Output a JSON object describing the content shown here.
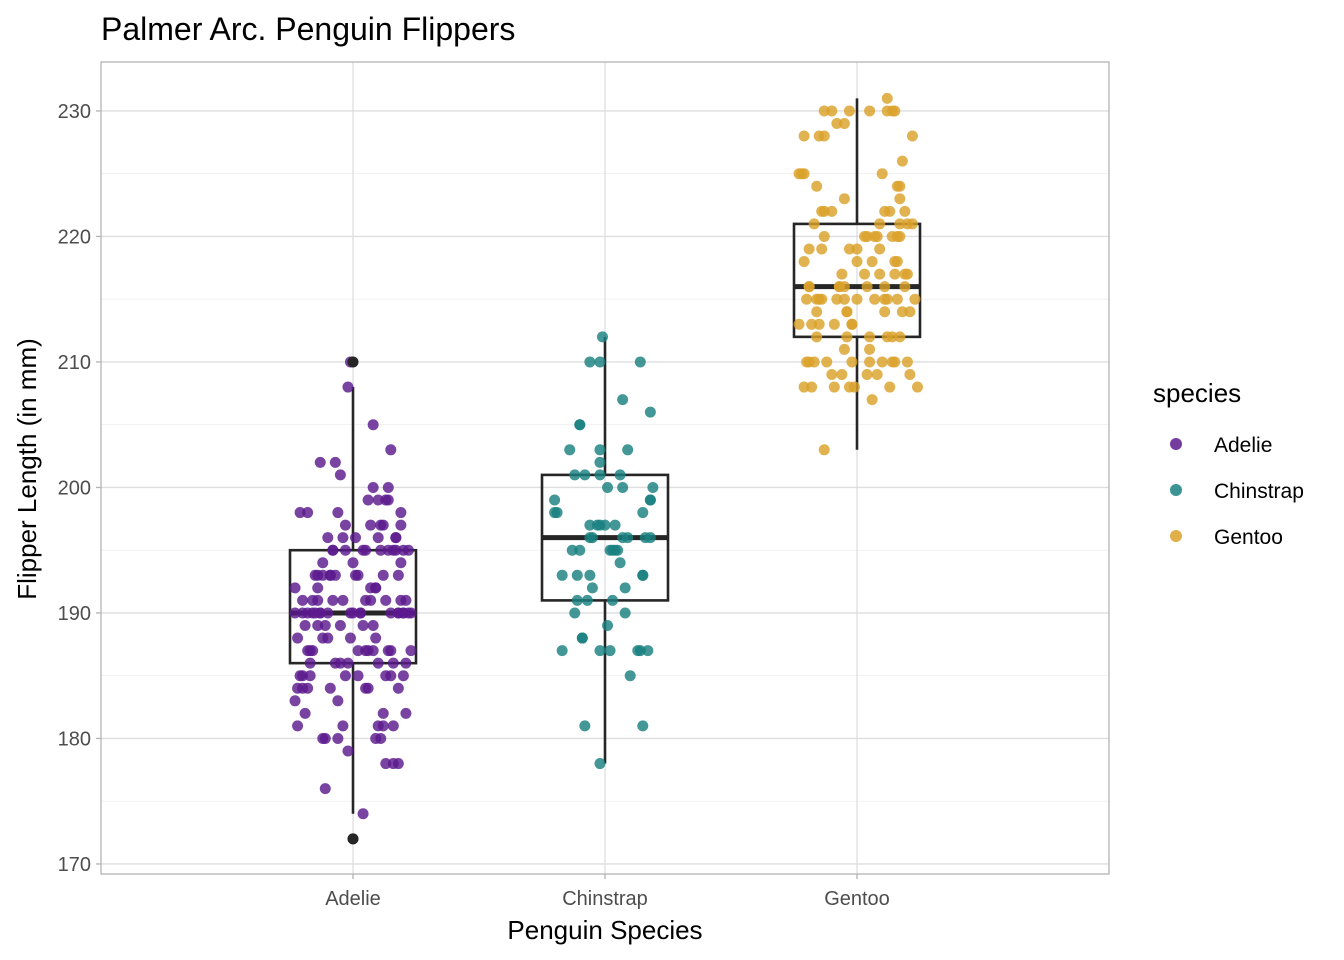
{
  "chart_data": {
    "type": "scatter",
    "overlay": "boxplot",
    "title": "Palmer Arc. Penguin Flippers",
    "xlabel": "Penguin Species",
    "ylabel": "Flipper Length (in mm)",
    "categories": [
      "Adelie",
      "Chinstrap",
      "Gentoo"
    ],
    "ylim": [
      169.2,
      233.9
    ],
    "yticks": [
      170,
      180,
      190,
      200,
      210,
      220,
      230
    ],
    "grid": true,
    "legend": {
      "title": "species",
      "position": "right"
    },
    "colors": {
      "Adelie": "#5c1a8e",
      "Chinstrap": "#1a8080",
      "Gentoo": "#dba12a"
    },
    "box_color": "#262626",
    "jitter_width": 0.5,
    "boxplots": [
      {
        "category": "Adelie",
        "min": 174,
        "q1": 186,
        "median": 190,
        "q3": 195,
        "max": 208,
        "outliers": [
          210,
          172
        ]
      },
      {
        "category": "Chinstrap",
        "min": 178,
        "q1": 191,
        "median": 196,
        "q3": 201,
        "max": 212,
        "outliers": []
      },
      {
        "category": "Gentoo",
        "min": 203,
        "q1": 212,
        "median": 216,
        "q3": 221,
        "max": 231,
        "outliers": []
      }
    ],
    "series": [
      {
        "name": "Adelie",
        "y": [
          181,
          186,
          195,
          193,
          190,
          181,
          195,
          193,
          190,
          186,
          180,
          182,
          191,
          198,
          185,
          195,
          197,
          184,
          194,
          174,
          180,
          189,
          185,
          180,
          187,
          183,
          187,
          172,
          180,
          178,
          178,
          188,
          184,
          195,
          196,
          190,
          180,
          181,
          184,
          182,
          195,
          186,
          196,
          185,
          190,
          182,
          179,
          190,
          191,
          186,
          188,
          190,
          200,
          187,
          191,
          186,
          193,
          181,
          194,
          185,
          195,
          185,
          192,
          184,
          192,
          195,
          188,
          190,
          198,
          190,
          190,
          196,
          197,
          190,
          195,
          191,
          184,
          187,
          195,
          189,
          196,
          187,
          193,
          191,
          194,
          190,
          189,
          189,
          190,
          202,
          205,
          185,
          186,
          187,
          208,
          190,
          196,
          178,
          192,
          192,
          203,
          183,
          190,
          193,
          184,
          199,
          190,
          181,
          197,
          198,
          191,
          193,
          197,
          191,
          196,
          188,
          199,
          189,
          189,
          187,
          198,
          176,
          202,
          186,
          199,
          191,
          195,
          191,
          210,
          190,
          197,
          193,
          199,
          187,
          190,
          191,
          200,
          185,
          193,
          193,
          187,
          188,
          190,
          192,
          185,
          190,
          184,
          195,
          193,
          187,
          201
        ],
        "x_jitter": [
          -0.22,
          0.1,
          0.05,
          -0.15,
          0.18,
          0.12,
          -0.08,
          0.02,
          -0.2,
          0.16,
          -0.11,
          0.21,
          0.07,
          -0.18,
          0.13,
          -0.03,
          0.19,
          -0.09,
          0.0,
          0.04,
          0.11,
          -0.14,
          0.2,
          -0.06,
          0.15,
          -0.23,
          0.08,
          0.0,
          0.09,
          0.13,
          0.18,
          -0.1,
          -0.2,
          0.22,
          -0.04,
          -0.16,
          -0.12,
          0.1,
          0.06,
          -0.19,
          0.14,
          -0.07,
          0.17,
          -0.21,
          0.03,
          0.12,
          -0.02,
          -0.13,
          0.19,
          -0.05,
          0.09,
          -0.23,
          0.14,
          -0.17,
          0.05,
          0.21,
          -0.09,
          0.16,
          -0.12,
          0.02,
          0.11,
          -0.2,
          0.07,
          0.18,
          -0.14,
          0.04,
          -0.01,
          0.15,
          -0.06,
          0.23,
          -0.18,
          0.1,
          -0.03,
          0.2,
          -0.08,
          0.13,
          -0.22,
          0.06,
          0.17,
          -0.11,
          0.01,
          -0.16,
          0.12,
          -0.04,
          0.19,
          -0.13,
          0.08,
          -0.19,
          0.22,
          -0.07,
          0.08,
          0.15,
          -0.17,
          0.05,
          -0.02,
          0.03,
          -0.1,
          0.16,
          -0.23,
          0.09,
          0.15,
          -0.06,
          0.18,
          -0.14,
          -0.18,
          0.13,
          0.0,
          -0.04,
          0.11,
          -0.21,
          0.21,
          -0.09,
          0.07,
          -0.16,
          0.17,
          -0.12,
          0.14,
          -0.05,
          0.04,
          0.23,
          0.19,
          -0.11,
          -0.13,
          -0.02,
          0.06,
          -0.2,
          0.16,
          -0.08,
          -0.01,
          -0.15,
          0.12,
          0.01,
          0.1,
          -0.18,
          0.2,
          -0.14,
          0.08,
          -0.03,
          0.18,
          -0.07,
          0.14,
          -0.22,
          -0.1,
          0.09,
          -0.17,
          -0.01,
          0.05,
          0.2,
          -0.12,
          0.02,
          -0.05
        ]
      },
      {
        "name": "Chinstrap",
        "y": [
          193,
          187,
          198,
          199,
          210,
          200,
          205,
          196,
          192,
          203,
          201,
          190,
          195,
          196,
          191,
          191,
          201,
          188,
          187,
          195,
          203,
          198,
          193,
          201,
          187,
          205,
          197,
          203,
          196,
          181,
          199,
          210,
          192,
          196,
          187,
          181,
          195,
          193,
          197,
          197,
          185,
          187,
          210,
          189,
          207,
          212,
          178,
          199,
          193,
          200,
          195,
          197,
          202,
          200,
          194,
          190,
          206,
          196,
          191,
          195,
          198,
          196,
          201,
          188,
          197,
          193,
          187,
          195
        ],
        "x_jitter": [
          -0.17,
          -0.17,
          0.15,
          0.18,
          -0.06,
          0.19,
          -0.1,
          0.16,
          -0.05,
          -0.14,
          0.06,
          -0.12,
          -0.1,
          -0.06,
          0.03,
          -0.11,
          -0.08,
          -0.09,
          -0.02,
          0.02,
          0.09,
          -0.2,
          0.15,
          -0.02,
          0.13,
          -0.1,
          -0.06,
          -0.02,
          0.07,
          -0.08,
          -0.2,
          -0.02,
          0.08,
          0.18,
          0.14,
          0.15,
          -0.13,
          -0.06,
          0.0,
          -0.03,
          0.1,
          0.02,
          0.14,
          0.01,
          0.07,
          -0.01,
          -0.02,
          0.18,
          0.15,
          0.07,
          0.05,
          -0.02,
          -0.02,
          0.01,
          0.06,
          0.08,
          0.18,
          0.09,
          -0.07,
          0.03,
          -0.19,
          -0.05,
          -0.12,
          -0.09,
          0.04,
          -0.11,
          0.17,
          0.04
        ]
      },
      {
        "name": "Gentoo",
        "y": [
          211,
          230,
          210,
          218,
          215,
          210,
          211,
          219,
          209,
          215,
          214,
          216,
          214,
          213,
          210,
          217,
          210,
          221,
          209,
          222,
          218,
          215,
          213,
          215,
          215,
          215,
          216,
          215,
          210,
          220,
          222,
          209,
          207,
          230,
          220,
          220,
          213,
          219,
          208,
          208,
          208,
          225,
          210,
          216,
          222,
          217,
          210,
          225,
          213,
          215,
          210,
          220,
          210,
          225,
          217,
          220,
          208,
          220,
          208,
          224,
          208,
          221,
          214,
          231,
          219,
          230,
          214,
          229,
          220,
          223,
          216,
          221,
          221,
          217,
          216,
          230,
          209,
          220,
          215,
          223,
          212,
          221,
          212,
          224,
          212,
          228,
          218,
          218,
          212,
          230,
          218,
          228,
          212,
          224,
          214,
          226,
          216,
          222,
          203,
          225,
          219,
          228,
          215,
          228,
          216,
          215,
          210,
          219,
          208,
          209,
          216,
          229,
          213,
          230,
          217,
          230,
          217,
          222,
          214,
          215,
          222,
          212,
          213
        ],
        "x_jitter": [
          0.05,
          0.12,
          -0.19,
          0.15,
          0.0,
          0.1,
          -0.05,
          -0.03,
          0.08,
          -0.14,
          0.21,
          -0.07,
          0.18,
          -0.23,
          0.14,
          0.03,
          -0.17,
          0.2,
          -0.1,
          -0.1,
          0.06,
          0.16,
          -0.09,
          -0.08,
          0.11,
          0.12,
          0.19,
          -0.16,
          -0.12,
          0.04,
          0.13,
          -0.06,
          0.06,
          0.15,
          0.16,
          0.08,
          -0.02,
          0.09,
          -0.21,
          0.13,
          -0.18,
          -0.22,
          0.05,
          -0.07,
          0.19,
          0.09,
          0.15,
          0.1,
          -0.15,
          -0.05,
          -0.2,
          0.03,
          -0.02,
          -0.23,
          0.2,
          0.07,
          -0.09,
          0.17,
          -0.01,
          0.17,
          0.24,
          0.22,
          0.11,
          0.12,
          -0.14,
          0.14,
          -0.04,
          -0.05,
          -0.13,
          -0.05,
          -0.19,
          -0.17,
          0.17,
          0.19,
          -0.19,
          -0.13,
          0.04,
          0.14,
          -0.15,
          0.17,
          -0.04,
          0.09,
          -0.16,
          0.16,
          0.12,
          0.22,
          0.16,
          -0.21,
          0.17,
          -0.1,
          0.0,
          -0.15,
          0.05,
          -0.16,
          -0.04,
          0.18,
          0.04,
          -0.14,
          -0.13,
          -0.21,
          0.0,
          -0.21,
          -0.2,
          -0.13,
          0.11,
          0.23,
          0.2,
          -0.19,
          -0.03,
          0.21,
          -0.05,
          -0.08,
          -0.02,
          -0.03,
          -0.06,
          0.05,
          0.15,
          0.11,
          -0.16,
          0.07,
          -0.13,
          0.14,
          -0.18
        ]
      }
    ]
  }
}
